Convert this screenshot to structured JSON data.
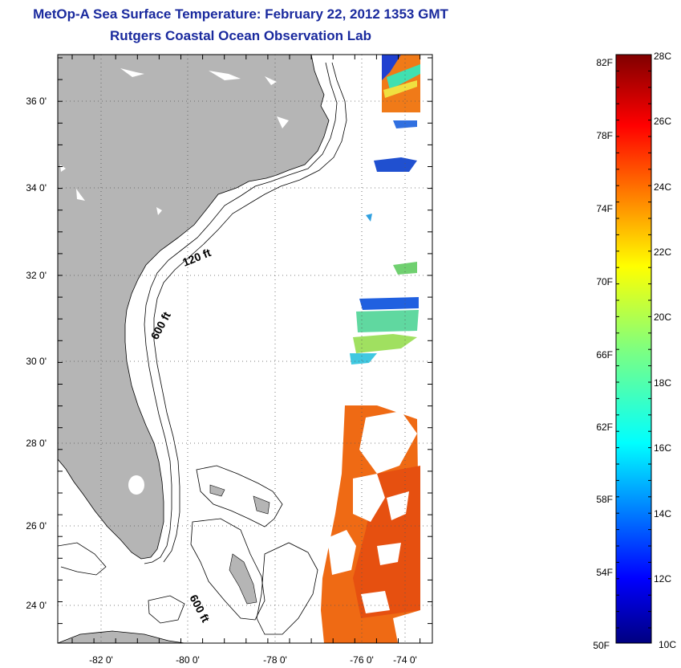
{
  "title": {
    "line1": "MetOp-A Sea Surface Temperature:  February 22, 2012 1353 GMT",
    "line2": "Rutgers Coastal Ocean Observation Lab"
  },
  "map": {
    "lat_labels": [
      "36 0'",
      "34 0'",
      "32 0'",
      "30 0'",
      "28 0'",
      "26 0'",
      "24 0'"
    ],
    "lon_labels": [
      "-82 0'",
      "-80 0'",
      "-78 0'",
      "-76 0'",
      "-74 0'"
    ],
    "contour_labels": [
      "120 ft",
      "600 ft",
      "600 ft"
    ],
    "colors": {
      "land": "#b5b5b5",
      "frame": "#000000",
      "sst_warm": "#ee5a10",
      "sst_mid": "#f07a18"
    }
  },
  "colorbar": {
    "fahrenheit_labels": [
      "82F",
      "78F",
      "74F",
      "70F",
      "66F",
      "62F",
      "58F",
      "54F",
      "50F"
    ],
    "celsius_labels": [
      "28C",
      "26C",
      "24C",
      "22C",
      "20C",
      "18C",
      "16C",
      "14C",
      "12C",
      "10C"
    ],
    "colormap": "jet"
  }
}
